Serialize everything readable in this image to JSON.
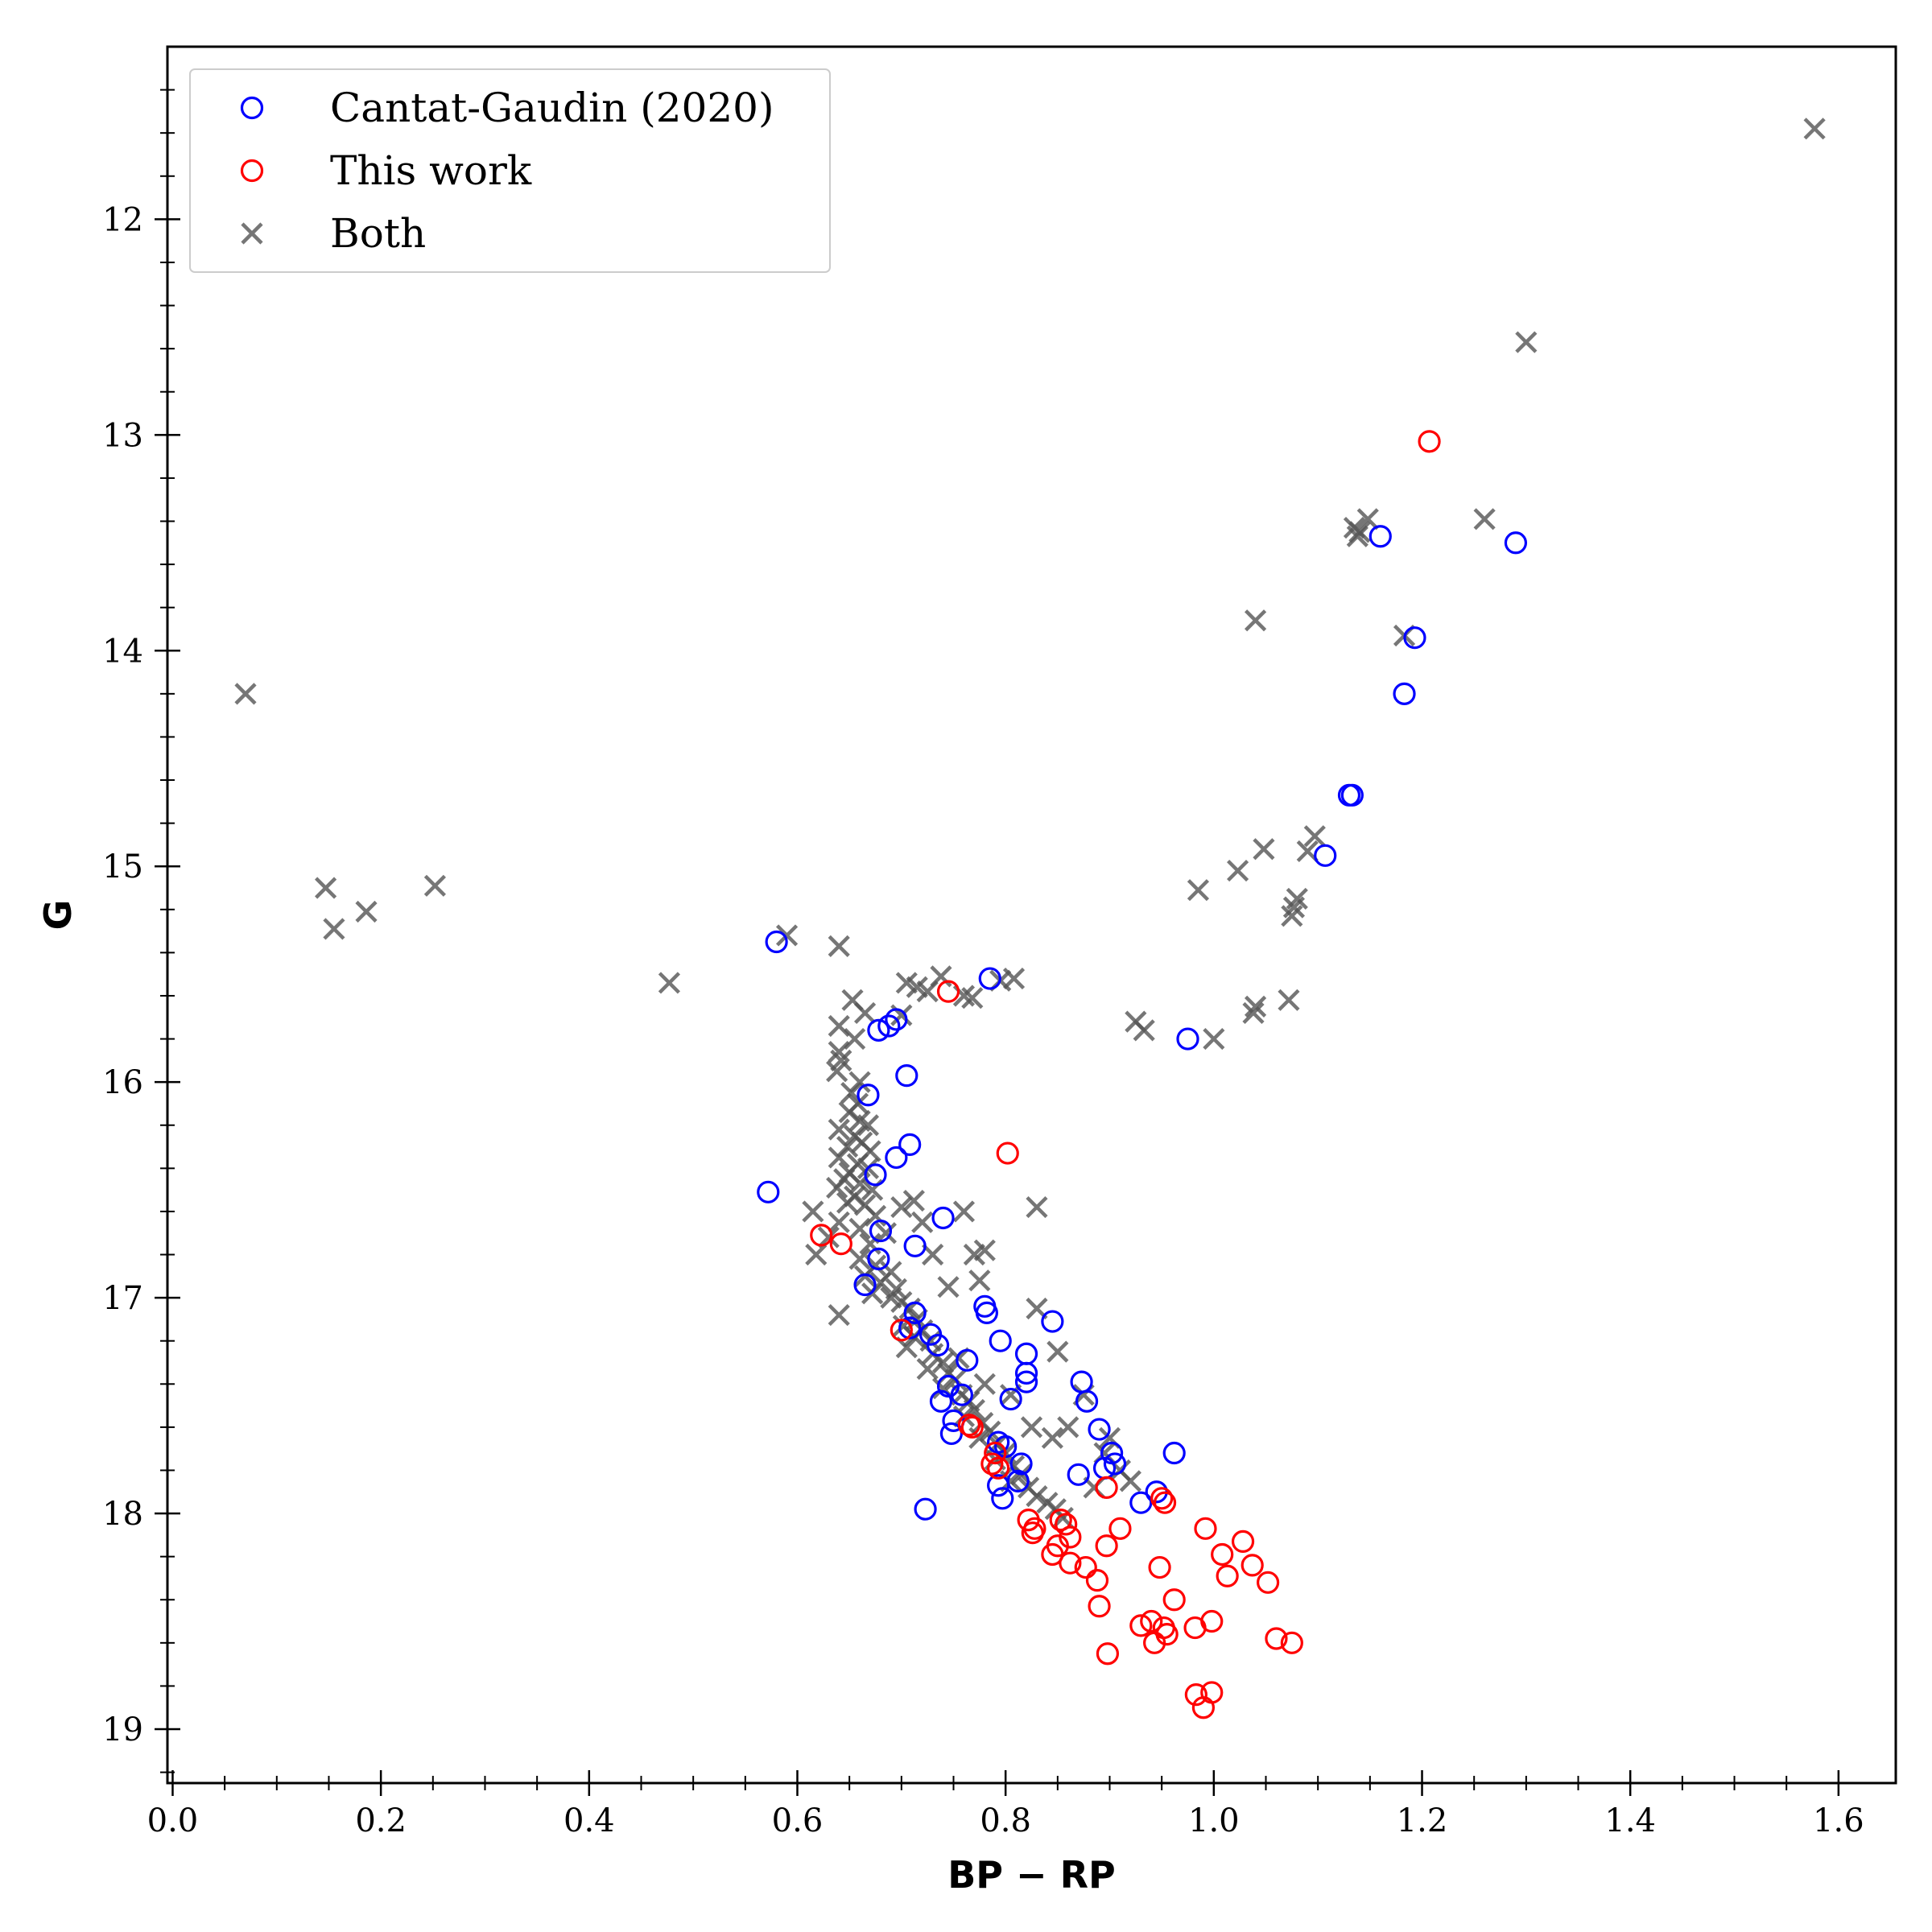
{
  "chart_data": {
    "type": "scatter",
    "title": "",
    "xlabel": "BP − RP",
    "ylabel": "G",
    "xlim": [
      -0.005,
      1.655
    ],
    "ylim": [
      19.25,
      11.2
    ],
    "y_inverted": true,
    "x_ticks": [
      0.0,
      0.2,
      0.4,
      0.6,
      0.8,
      1.0,
      1.2,
      1.4,
      1.6
    ],
    "x_tick_labels": [
      "0.0",
      "0.2",
      "0.4",
      "0.6",
      "0.8",
      "1.0",
      "1.2",
      "1.4",
      "1.6"
    ],
    "y_ticks": [
      12,
      13,
      14,
      15,
      16,
      17,
      18,
      19
    ],
    "y_tick_labels": [
      "12",
      "13",
      "14",
      "15",
      "16",
      "17",
      "18",
      "19"
    ],
    "grid": false,
    "legend_position": "top-left",
    "series": [
      {
        "name": "Cantat-Gaudin (2020)",
        "marker": "open-circle",
        "color": "#0000ff",
        "points": [
          [
            0.58,
            15.35
          ],
          [
            0.785,
            15.52
          ],
          [
            0.975,
            15.8
          ],
          [
            0.678,
            15.76
          ],
          [
            0.695,
            15.71
          ],
          [
            0.688,
            15.74
          ],
          [
            0.705,
            15.97
          ],
          [
            0.668,
            16.06
          ],
          [
            0.708,
            16.29
          ],
          [
            0.695,
            16.35
          ],
          [
            0.675,
            16.43
          ],
          [
            0.572,
            16.51
          ],
          [
            0.74,
            16.63
          ],
          [
            0.68,
            16.69
          ],
          [
            0.713,
            16.76
          ],
          [
            0.678,
            16.82
          ],
          [
            0.665,
            16.94
          ],
          [
            0.78,
            17.04
          ],
          [
            0.782,
            17.07
          ],
          [
            0.845,
            17.11
          ],
          [
            0.713,
            17.07
          ],
          [
            0.708,
            17.14
          ],
          [
            0.728,
            17.17
          ],
          [
            0.795,
            17.2
          ],
          [
            0.735,
            17.22
          ],
          [
            0.82,
            17.26
          ],
          [
            0.763,
            17.29
          ],
          [
            0.82,
            17.35
          ],
          [
            0.82,
            17.39
          ],
          [
            0.873,
            17.39
          ],
          [
            0.745,
            17.41
          ],
          [
            0.758,
            17.45
          ],
          [
            0.805,
            17.47
          ],
          [
            0.878,
            17.48
          ],
          [
            0.738,
            17.48
          ],
          [
            0.75,
            17.57
          ],
          [
            0.89,
            17.61
          ],
          [
            0.748,
            17.63
          ],
          [
            0.793,
            17.67
          ],
          [
            0.8,
            17.69
          ],
          [
            0.902,
            17.72
          ],
          [
            0.962,
            17.72
          ],
          [
            0.905,
            17.77
          ],
          [
            0.895,
            17.79
          ],
          [
            0.815,
            17.77
          ],
          [
            0.87,
            17.82
          ],
          [
            0.812,
            17.85
          ],
          [
            0.793,
            17.87
          ],
          [
            0.945,
            17.9
          ],
          [
            0.797,
            17.93
          ],
          [
            0.93,
            17.95
          ],
          [
            0.723,
            17.98
          ],
          [
            1.29,
            13.5
          ],
          [
            1.16,
            13.47
          ],
          [
            1.193,
            13.94
          ],
          [
            1.183,
            14.2
          ],
          [
            1.13,
            14.67
          ],
          [
            1.133,
            14.67
          ],
          [
            1.107,
            14.95
          ]
        ]
      },
      {
        "name": "This work",
        "marker": "open-circle",
        "color": "#ff0000",
        "points": [
          [
            1.207,
            13.03
          ],
          [
            0.745,
            15.58
          ],
          [
            0.802,
            16.33
          ],
          [
            0.623,
            16.71
          ],
          [
            0.642,
            16.75
          ],
          [
            0.7,
            17.15
          ],
          [
            0.765,
            17.59
          ],
          [
            0.768,
            17.6
          ],
          [
            0.79,
            17.72
          ],
          [
            0.787,
            17.77
          ],
          [
            0.793,
            17.79
          ],
          [
            0.897,
            17.88
          ],
          [
            0.95,
            17.93
          ],
          [
            0.953,
            17.95
          ],
          [
            0.822,
            18.03
          ],
          [
            0.853,
            18.03
          ],
          [
            0.858,
            18.05
          ],
          [
            0.828,
            18.07
          ],
          [
            0.826,
            18.09
          ],
          [
            0.91,
            18.07
          ],
          [
            0.992,
            18.07
          ],
          [
            0.862,
            18.11
          ],
          [
            0.85,
            18.15
          ],
          [
            0.897,
            18.15
          ],
          [
            1.028,
            18.13
          ],
          [
            0.845,
            18.19
          ],
          [
            1.008,
            18.19
          ],
          [
            0.862,
            18.23
          ],
          [
            0.948,
            18.25
          ],
          [
            0.877,
            18.25
          ],
          [
            1.037,
            18.24
          ],
          [
            1.013,
            18.29
          ],
          [
            0.888,
            18.31
          ],
          [
            1.052,
            18.32
          ],
          [
            0.962,
            18.4
          ],
          [
            0.89,
            18.43
          ],
          [
            0.94,
            18.5
          ],
          [
            0.93,
            18.52
          ],
          [
            0.952,
            18.53
          ],
          [
            0.998,
            18.5
          ],
          [
            0.982,
            18.53
          ],
          [
            0.955,
            18.56
          ],
          [
            0.943,
            18.6
          ],
          [
            1.06,
            18.58
          ],
          [
            1.075,
            18.6
          ],
          [
            0.898,
            18.65
          ],
          [
            0.983,
            18.84
          ],
          [
            0.998,
            18.83
          ],
          [
            0.99,
            18.9
          ]
        ]
      },
      {
        "name": "Both",
        "marker": "x",
        "color": "#555555",
        "points": [
          [
            1.577,
            11.58
          ],
          [
            1.3,
            12.57
          ],
          [
            1.148,
            13.39
          ],
          [
            1.26,
            13.39
          ],
          [
            1.135,
            13.43
          ],
          [
            1.14,
            13.45
          ],
          [
            1.138,
            13.47
          ],
          [
            1.04,
            13.86
          ],
          [
            1.183,
            13.93
          ],
          [
            0.07,
            14.2
          ],
          [
            1.097,
            14.86
          ],
          [
            1.048,
            14.92
          ],
          [
            1.09,
            14.93
          ],
          [
            1.023,
            15.02
          ],
          [
            0.147,
            15.1
          ],
          [
            0.252,
            15.09
          ],
          [
            0.985,
            15.11
          ],
          [
            1.08,
            15.15
          ],
          [
            1.077,
            15.19
          ],
          [
            1.075,
            15.23
          ],
          [
            0.186,
            15.21
          ],
          [
            0.155,
            15.29
          ],
          [
            0.59,
            15.32
          ],
          [
            0.64,
            15.37
          ],
          [
            0.477,
            15.54
          ],
          [
            0.738,
            15.51
          ],
          [
            0.705,
            15.54
          ],
          [
            0.795,
            15.53
          ],
          [
            0.808,
            15.52
          ],
          [
            0.715,
            15.56
          ],
          [
            0.725,
            15.58
          ],
          [
            0.76,
            15.6
          ],
          [
            0.768,
            15.61
          ],
          [
            1.04,
            15.65
          ],
          [
            1.038,
            15.68
          ],
          [
            1.072,
            15.62
          ],
          [
            0.925,
            15.72
          ],
          [
            0.933,
            15.76
          ],
          [
            1.0,
            15.8
          ],
          [
            0.653,
            15.62
          ],
          [
            0.665,
            15.68
          ],
          [
            0.7,
            15.69
          ],
          [
            0.64,
            15.74
          ],
          [
            0.655,
            15.8
          ],
          [
            0.64,
            15.86
          ],
          [
            0.642,
            15.9
          ],
          [
            0.638,
            15.95
          ],
          [
            0.66,
            16.0
          ],
          [
            0.652,
            16.05
          ],
          [
            0.658,
            16.1
          ],
          [
            0.65,
            16.14
          ],
          [
            0.66,
            16.18
          ],
          [
            0.668,
            16.2
          ],
          [
            0.64,
            16.22
          ],
          [
            0.655,
            16.25
          ],
          [
            0.662,
            16.28
          ],
          [
            0.648,
            16.3
          ],
          [
            0.67,
            16.32
          ],
          [
            0.64,
            16.35
          ],
          [
            0.658,
            16.38
          ],
          [
            0.668,
            16.4
          ],
          [
            0.65,
            16.42
          ],
          [
            0.645,
            16.45
          ],
          [
            0.66,
            16.47
          ],
          [
            0.638,
            16.49
          ],
          [
            0.672,
            16.5
          ],
          [
            0.655,
            16.53
          ],
          [
            0.648,
            16.56
          ],
          [
            0.665,
            16.57
          ],
          [
            0.615,
            16.6
          ],
          [
            0.675,
            16.62
          ],
          [
            0.7,
            16.58
          ],
          [
            0.712,
            16.55
          ],
          [
            0.64,
            16.65
          ],
          [
            0.66,
            16.68
          ],
          [
            0.685,
            16.7
          ],
          [
            0.63,
            16.72
          ],
          [
            0.67,
            16.75
          ],
          [
            0.618,
            16.8
          ],
          [
            0.66,
            16.82
          ],
          [
            0.675,
            16.85
          ],
          [
            0.69,
            16.88
          ],
          [
            0.665,
            16.9
          ],
          [
            0.68,
            16.93
          ],
          [
            0.695,
            16.96
          ],
          [
            0.672,
            16.98
          ],
          [
            0.69,
            17.0
          ],
          [
            0.7,
            17.02
          ],
          [
            0.708,
            17.05
          ],
          [
            0.64,
            17.08
          ],
          [
            0.715,
            17.1
          ],
          [
            0.702,
            17.13
          ],
          [
            0.72,
            17.15
          ],
          [
            0.712,
            17.18
          ],
          [
            0.728,
            17.2
          ],
          [
            0.705,
            17.23
          ],
          [
            0.73,
            17.26
          ],
          [
            0.74,
            17.3
          ],
          [
            0.725,
            17.33
          ],
          [
            0.745,
            17.35
          ],
          [
            0.752,
            17.38
          ],
          [
            0.74,
            17.42
          ],
          [
            0.758,
            17.45
          ],
          [
            0.765,
            17.48
          ],
          [
            0.77,
            17.52
          ],
          [
            0.76,
            17.55
          ],
          [
            0.778,
            17.58
          ],
          [
            0.785,
            17.62
          ],
          [
            0.775,
            17.65
          ],
          [
            0.792,
            17.68
          ],
          [
            0.8,
            17.72
          ],
          [
            0.79,
            17.75
          ],
          [
            0.808,
            17.78
          ],
          [
            0.815,
            17.82
          ],
          [
            0.805,
            17.85
          ],
          [
            0.822,
            17.88
          ],
          [
            0.83,
            17.92
          ],
          [
            0.84,
            17.95
          ],
          [
            0.848,
            17.98
          ],
          [
            0.855,
            18.02
          ],
          [
            0.76,
            16.6
          ],
          [
            0.73,
            16.8
          ],
          [
            0.77,
            16.8
          ],
          [
            0.745,
            16.95
          ],
          [
            0.775,
            16.92
          ],
          [
            0.83,
            16.58
          ],
          [
            0.83,
            17.05
          ],
          [
            0.85,
            17.25
          ],
          [
            0.875,
            17.45
          ],
          [
            0.9,
            17.65
          ],
          [
            0.86,
            17.6
          ],
          [
            0.895,
            17.72
          ],
          [
            0.92,
            17.85
          ],
          [
            0.885,
            17.88
          ],
          [
            0.91,
            17.8
          ],
          [
            0.845,
            17.65
          ],
          [
            0.805,
            17.45
          ],
          [
            0.825,
            17.6
          ],
          [
            0.78,
            17.4
          ],
          [
            0.755,
            17.28
          ],
          [
            0.72,
            16.65
          ],
          [
            0.78,
            16.78
          ]
        ]
      }
    ]
  },
  "legend": {
    "items": [
      {
        "label": "Cantat-Gaudin (2020)",
        "marker": "open-circle",
        "color": "#0000ff"
      },
      {
        "label": "This work",
        "marker": "open-circle",
        "color": "#ff0000"
      },
      {
        "label": "Both",
        "marker": "x",
        "color": "#555555"
      }
    ]
  }
}
